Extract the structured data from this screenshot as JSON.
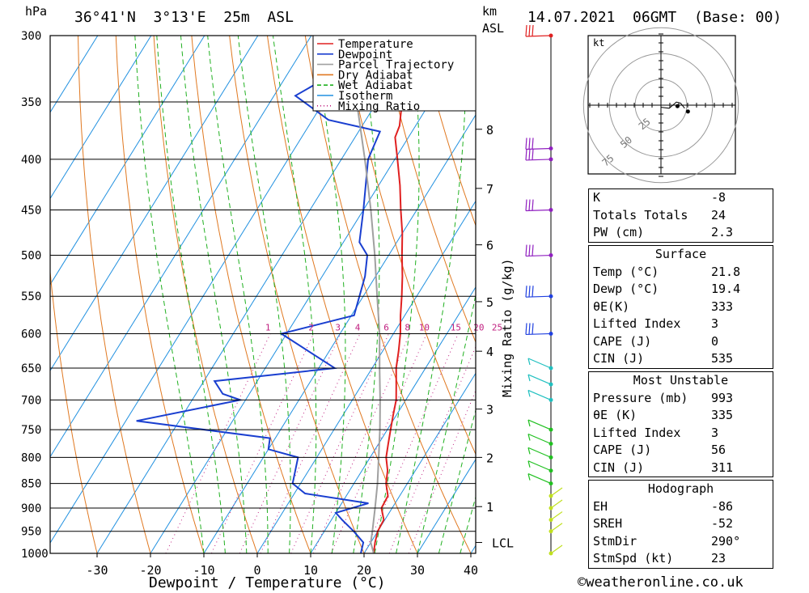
{
  "header": {
    "left_unit": "hPa",
    "location": "36°41'N  3°13'E  25m  ASL",
    "km_unit": "km",
    "asl_unit": "ASL",
    "datetime": "14.07.2021  06GMT  (Base: 00)"
  },
  "footer": {
    "xlabel": "Dewpoint / Temperature (°C)",
    "copyright": "©weatheronline.co.uk",
    "mixing_ratio_label": "Mixing Ratio (g/kg)"
  },
  "chart_data": {
    "type": "line",
    "title": "36°41'N 3°13'E 25m ASL",
    "xlabel": "Dewpoint / Temperature (°C)",
    "ylabel": "hPa",
    "y_scale": "log",
    "xlim": [
      -40,
      40
    ],
    "ylim": [
      1000,
      300
    ],
    "x_ticks": [
      -30,
      -20,
      -10,
      0,
      10,
      20,
      30,
      40
    ],
    "pressure_levels": [
      300,
      350,
      400,
      450,
      500,
      550,
      600,
      650,
      700,
      750,
      800,
      850,
      900,
      950,
      1000
    ],
    "km_ticks": [
      {
        "km": "8",
        "p": 373
      },
      {
        "km": "7",
        "p": 428
      },
      {
        "km": "6",
        "p": 488
      },
      {
        "km": "5",
        "p": 557
      },
      {
        "km": "4",
        "p": 625
      },
      {
        "km": "3",
        "p": 715
      },
      {
        "km": "2",
        "p": 800
      },
      {
        "km": "1",
        "p": 897
      },
      {
        "km": "LCL",
        "p": 975
      }
    ],
    "mixing_ratio_labels": [
      "1",
      "2",
      "3",
      "4",
      "6",
      "8",
      "10",
      "15",
      "20",
      "25"
    ],
    "mixing_ratio_values": [
      1,
      2,
      3,
      4,
      6,
      8,
      10,
      15,
      20,
      25
    ],
    "legend": {
      "placement": "top-center",
      "entries": [
        {
          "label": "Temperature",
          "color": "#e02020",
          "style": "solid"
        },
        {
          "label": "Dewpoint",
          "color": "#1a3fd0",
          "style": "solid"
        },
        {
          "label": "Parcel Trajectory",
          "color": "#a0a0a0",
          "style": "solid"
        },
        {
          "label": "Dry Adiabat",
          "color": "#e07820",
          "style": "solid"
        },
        {
          "label": "Wet Adiabat",
          "color": "#20b020",
          "style": "dashed"
        },
        {
          "label": "Isotherm",
          "color": "#2090e0",
          "style": "solid"
        },
        {
          "label": "Mixing Ratio",
          "color": "#c02080",
          "style": "dotted"
        }
      ]
    },
    "series": [
      {
        "name": "Temperature",
        "color": "#e02020",
        "points": [
          {
            "p": 1000,
            "t": 21.8
          },
          {
            "p": 975,
            "t": 20.8
          },
          {
            "p": 950,
            "t": 20.0
          },
          {
            "p": 925,
            "t": 19.8
          },
          {
            "p": 900,
            "t": 18.0
          },
          {
            "p": 875,
            "t": 17.8
          },
          {
            "p": 850,
            "t": 16.0
          },
          {
            "p": 825,
            "t": 14.8
          },
          {
            "p": 800,
            "t": 13.0
          },
          {
            "p": 775,
            "t": 11.8
          },
          {
            "p": 750,
            "t": 10.6
          },
          {
            "p": 725,
            "t": 9.4
          },
          {
            "p": 700,
            "t": 8.2
          },
          {
            "p": 675,
            "t": 6.4
          },
          {
            "p": 650,
            "t": 4.5
          },
          {
            "p": 625,
            "t": 3.0
          },
          {
            "p": 600,
            "t": 1.3
          },
          {
            "p": 575,
            "t": -0.8
          },
          {
            "p": 550,
            "t": -2.8
          },
          {
            "p": 525,
            "t": -5.0
          },
          {
            "p": 500,
            "t": -7.5
          },
          {
            "p": 475,
            "t": -10.0
          },
          {
            "p": 450,
            "t": -13.0
          },
          {
            "p": 425,
            "t": -16.0
          },
          {
            "p": 400,
            "t": -19.5
          },
          {
            "p": 380,
            "t": -22.5
          },
          {
            "p": 370,
            "t": -23.0
          },
          {
            "p": 350,
            "t": -25.3
          },
          {
            "p": 325,
            "t": -29.5
          },
          {
            "p": 300,
            "t": -34.0
          }
        ]
      },
      {
        "name": "Dewpoint",
        "color": "#1a3fd0",
        "points": [
          {
            "p": 1000,
            "t": 19.4
          },
          {
            "p": 975,
            "t": 18.6
          },
          {
            "p": 950,
            "t": 15.5
          },
          {
            "p": 925,
            "t": 12.0
          },
          {
            "p": 910,
            "t": 10.0
          },
          {
            "p": 890,
            "t": 15.0
          },
          {
            "p": 870,
            "t": 2.0
          },
          {
            "p": 850,
            "t": -1.5
          },
          {
            "p": 800,
            "t": -3.5
          },
          {
            "p": 785,
            "t": -10.0
          },
          {
            "p": 765,
            "t": -11.0
          },
          {
            "p": 735,
            "t": -38.0
          },
          {
            "p": 700,
            "t": -21.0
          },
          {
            "p": 690,
            "t": -25.0
          },
          {
            "p": 670,
            "t": -28.0
          },
          {
            "p": 650,
            "t": -7.0
          },
          {
            "p": 600,
            "t": -21.0
          },
          {
            "p": 575,
            "t": -9.5
          },
          {
            "p": 525,
            "t": -12.0
          },
          {
            "p": 500,
            "t": -14.0
          },
          {
            "p": 485,
            "t": -17.0
          },
          {
            "p": 450,
            "t": -20.0
          },
          {
            "p": 400,
            "t": -25.0
          },
          {
            "p": 375,
            "t": -26.0
          },
          {
            "p": 365,
            "t": -37.0
          },
          {
            "p": 345,
            "t": -46.0
          },
          {
            "p": 330,
            "t": -42.0
          },
          {
            "p": 300,
            "t": -45.0
          }
        ]
      },
      {
        "name": "Parcel Trajectory",
        "color": "#a0a0a0",
        "points": [
          {
            "p": 1000,
            "t": 21.8
          },
          {
            "p": 975,
            "t": 20.0
          },
          {
            "p": 950,
            "t": 19.0
          },
          {
            "p": 900,
            "t": 16.8
          },
          {
            "p": 850,
            "t": 14.4
          },
          {
            "p": 800,
            "t": 11.6
          },
          {
            "p": 750,
            "t": 8.6
          },
          {
            "p": 700,
            "t": 5.2
          },
          {
            "p": 650,
            "t": 1.4
          },
          {
            "p": 600,
            "t": -2.6
          },
          {
            "p": 550,
            "t": -7.4
          },
          {
            "p": 500,
            "t": -12.6
          },
          {
            "p": 450,
            "t": -18.6
          },
          {
            "p": 400,
            "t": -25.6
          },
          {
            "p": 350,
            "t": -33.8
          },
          {
            "p": 320,
            "t": -39.6
          }
        ]
      }
    ],
    "wind_barbs_hpa": [
      1000,
      950,
      925,
      900,
      875,
      850,
      825,
      800,
      775,
      750,
      700,
      675,
      650,
      600,
      550,
      500,
      450,
      400,
      390,
      300
    ],
    "hodograph": {
      "unit_label": "kt",
      "ring_labels": [
        "25",
        "50",
        "75"
      ],
      "points_kt": [
        {
          "u": 0,
          "v": -2
        },
        {
          "u": 8,
          "v": -3
        },
        {
          "u": 15,
          "v": 3
        },
        {
          "u": 19,
          "v": 2
        },
        {
          "u": 23,
          "v": -3
        }
      ],
      "storm_motion_kt": {
        "u": 16,
        "v": -1
      }
    }
  },
  "indices": {
    "block1": [
      {
        "label": "K",
        "value": "-8"
      },
      {
        "label": "Totals Totals",
        "value": "24"
      },
      {
        "label": "PW (cm)",
        "value": "2.3"
      }
    ],
    "surface_title": "Surface",
    "surface": [
      {
        "label": "Temp (°C)",
        "value": "21.8"
      },
      {
        "label": "Dewp (°C)",
        "value": "19.4"
      },
      {
        "label": "θE(K)",
        "value": "333"
      },
      {
        "label": "Lifted Index",
        "value": "3"
      },
      {
        "label": "CAPE (J)",
        "value": "0"
      },
      {
        "label": "CIN (J)",
        "value": "535"
      }
    ],
    "unstable_title": "Most Unstable",
    "unstable": [
      {
        "label": "Pressure (mb)",
        "value": "993"
      },
      {
        "label": "θE (K)",
        "value": "335"
      },
      {
        "label": "Lifted Index",
        "value": "3"
      },
      {
        "label": "CAPE (J)",
        "value": "56"
      },
      {
        "label": "CIN (J)",
        "value": "311"
      }
    ],
    "hodo_title": "Hodograph",
    "hodo": [
      {
        "label": "EH",
        "value": "-86"
      },
      {
        "label": "SREH",
        "value": "-52"
      },
      {
        "label": "StmDir",
        "value": "290°"
      },
      {
        "label": "StmSpd (kt)",
        "value": "23"
      }
    ]
  }
}
